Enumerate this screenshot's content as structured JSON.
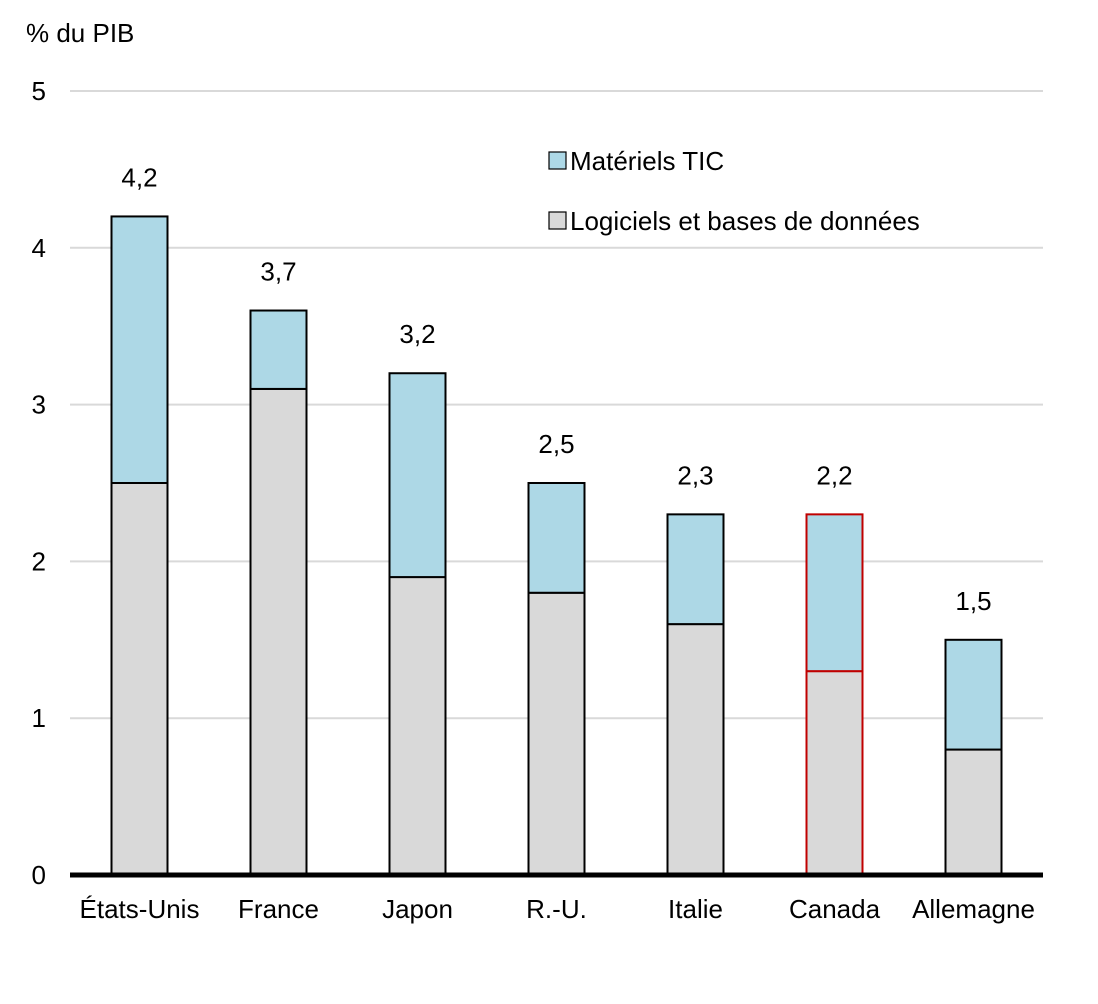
{
  "chart_data": {
    "type": "bar",
    "stacked": true,
    "ylabel": "% du PIB",
    "ylim": [
      0,
      5
    ],
    "yticks": [
      0,
      1,
      2,
      3,
      4,
      5
    ],
    "grid": true,
    "legend_position": "top-right",
    "categories": [
      "États-Unis",
      "France",
      "Japon",
      "R.-U.",
      "Italie",
      "Canada",
      "Allemagne"
    ],
    "series": [
      {
        "name": "Logiciels et bases de données",
        "color": "#d9d9d9",
        "values": [
          2.5,
          3.1,
          1.9,
          1.8,
          1.6,
          1.3,
          0.8
        ]
      },
      {
        "name": "Matériels TIC",
        "color": "#add8e6",
        "values": [
          1.7,
          0.5,
          1.3,
          0.7,
          0.7,
          1.0,
          0.7
        ]
      }
    ],
    "total_labels": [
      "4,2",
      "3,7",
      "3,2",
      "2,5",
      "2,3",
      "2,2",
      "1,5"
    ],
    "highlight_category": "Canada",
    "highlight_color": "#c00000"
  }
}
